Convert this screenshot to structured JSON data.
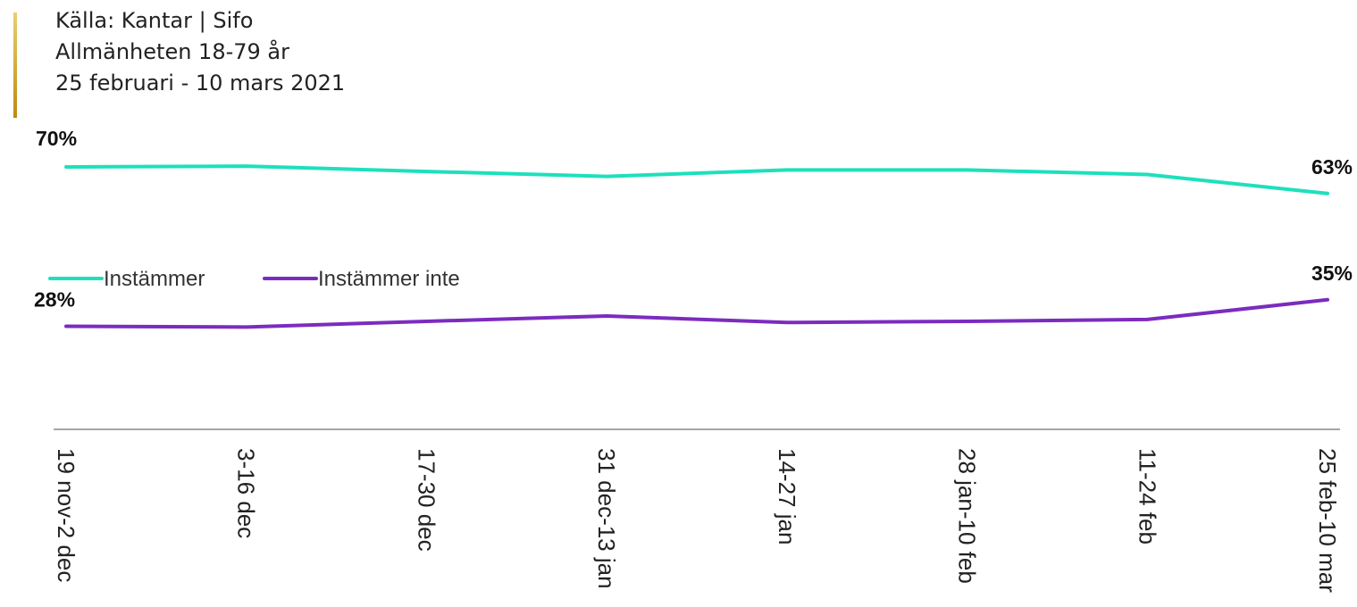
{
  "source": {
    "line1": "Källa: Kantar | Sifo",
    "line2": "Allmänheten 18-79 år",
    "line3": "25 februari - 10 mars 2021"
  },
  "colors": {
    "accent": "#d4a52a",
    "instammer": "#1de0bc",
    "instammer_inte": "#7b2cbf",
    "axis": "#888888"
  },
  "chart_data": {
    "type": "line",
    "categories": [
      "19 nov-2 dec",
      "3-16 dec",
      "17-30 dec",
      "31 dec-13 jan",
      "14-27 jan",
      "28 jan-10 feb",
      "11-24 feb",
      "25 feb-10 mar"
    ],
    "series": [
      {
        "name": "Instämmer",
        "values": [
          70,
          70.2,
          68.8,
          67.5,
          69.2,
          69.2,
          68.0,
          63
        ],
        "first_label": "70%",
        "last_label": "63%"
      },
      {
        "name": "Instämmer inte",
        "values": [
          28,
          27.8,
          29.3,
          30.7,
          29.0,
          29.3,
          29.8,
          35
        ],
        "first_label": "28%",
        "last_label": "35%"
      }
    ],
    "legend": "left",
    "grid": false
  }
}
